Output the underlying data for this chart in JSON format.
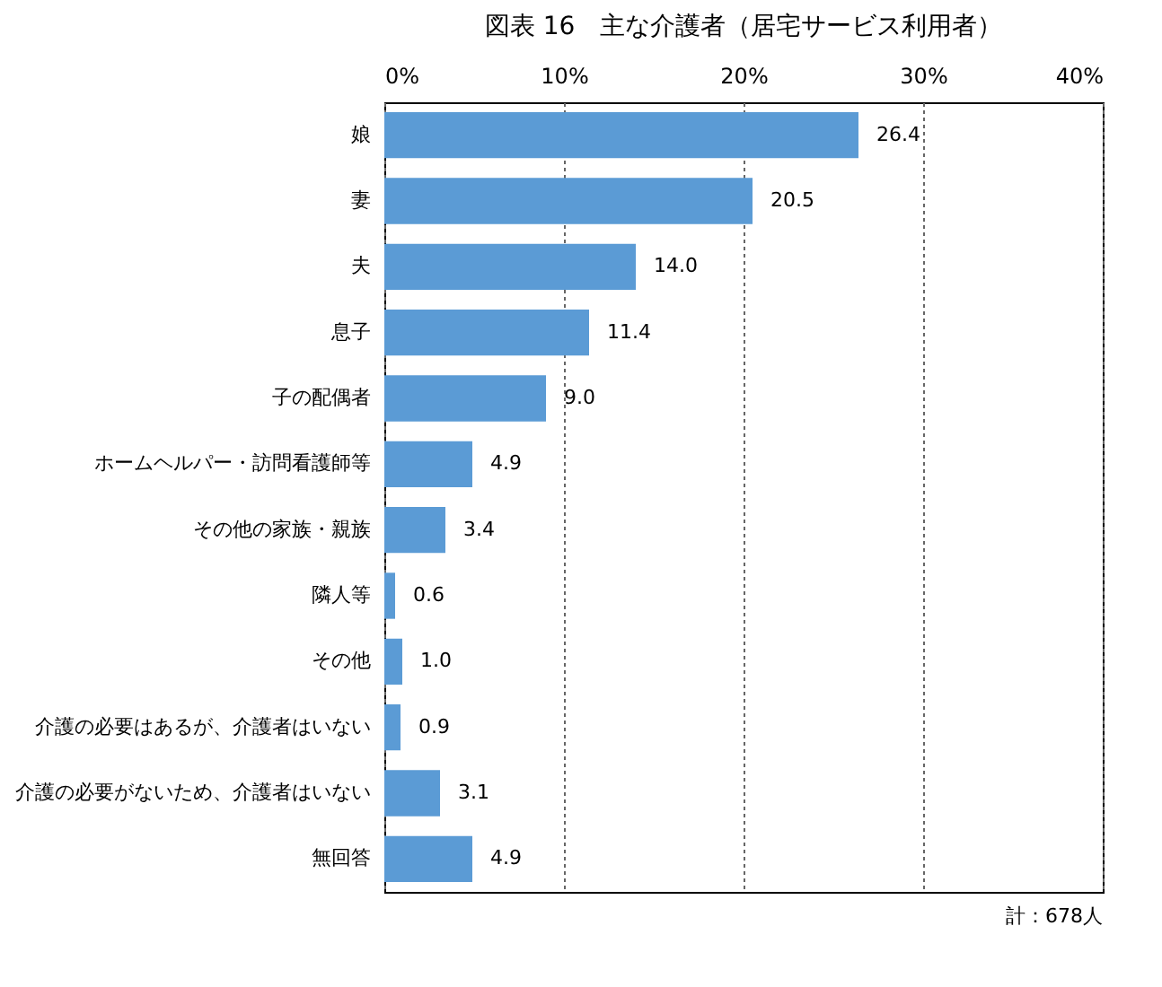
{
  "chart_data": {
    "type": "bar",
    "orientation": "horizontal",
    "title": "図表 16　主な介護者（居宅サービス利用者）",
    "categories": [
      "娘",
      "妻",
      "夫",
      "息子",
      "子の配偶者",
      "ホームヘルパー・訪問看護師等",
      "その他の家族・親族",
      "隣人等",
      "その他",
      "介護の必要はあるが、介護者はいない",
      "介護の必要がないため、介護者はいない",
      "無回答"
    ],
    "values": [
      26.4,
      20.5,
      14.0,
      11.4,
      9.0,
      4.9,
      3.4,
      0.6,
      1.0,
      0.9,
      3.1,
      4.9
    ],
    "value_labels": [
      "26.4",
      "20.5",
      "14.0",
      "11.4",
      "9.0",
      "4.9",
      "3.4",
      "0.6",
      "1.0",
      "0.9",
      "3.1",
      "4.9"
    ],
    "color": "#5b9bd5",
    "xlim": [
      0,
      40
    ],
    "xticks": [
      {
        "value": 0,
        "label": "0%"
      },
      {
        "value": 10,
        "label": "10%"
      },
      {
        "value": 20,
        "label": "20%"
      },
      {
        "value": 30,
        "label": "30%"
      },
      {
        "value": 40,
        "label": "40%"
      }
    ],
    "grid": "x",
    "annotations": [
      "計：678人"
    ]
  }
}
